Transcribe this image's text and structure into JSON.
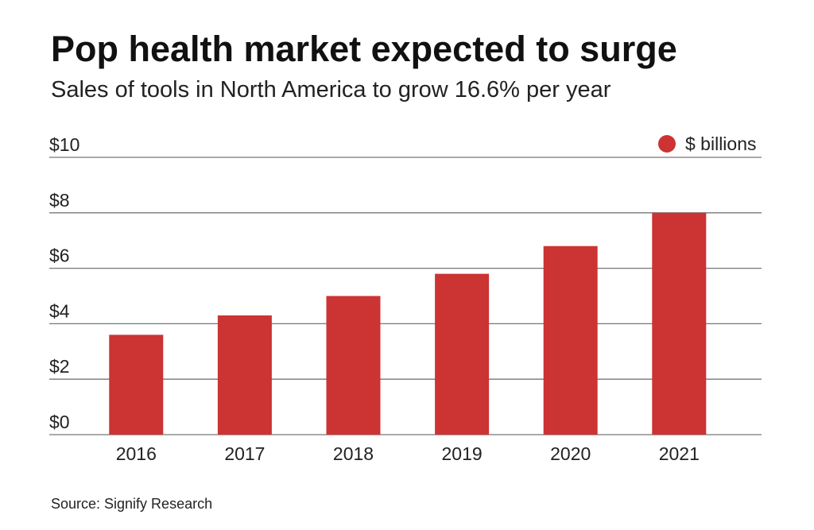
{
  "chart_data": {
    "type": "bar",
    "title": "Pop health market expected to surge",
    "subtitle": "Sales of tools in North America to grow 16.6% per year",
    "categories": [
      "2016",
      "2017",
      "2018",
      "2019",
      "2020",
      "2021"
    ],
    "series": [
      {
        "name": "$ billions",
        "values": [
          3.6,
          4.3,
          5.0,
          5.8,
          6.8,
          8.0
        ]
      }
    ],
    "yticks": [
      0,
      2,
      4,
      6,
      8,
      10
    ],
    "ytick_labels": [
      "$0",
      "$2",
      "$4",
      "$6",
      "$8",
      "$10"
    ],
    "ylim": [
      0,
      10
    ],
    "xlabel": "",
    "ylabel": "",
    "grid": true,
    "legend_placement": "top-right",
    "source": "Source: Signify Research",
    "colors": {
      "bar": "#cc3333",
      "grid": "#777777"
    }
  }
}
